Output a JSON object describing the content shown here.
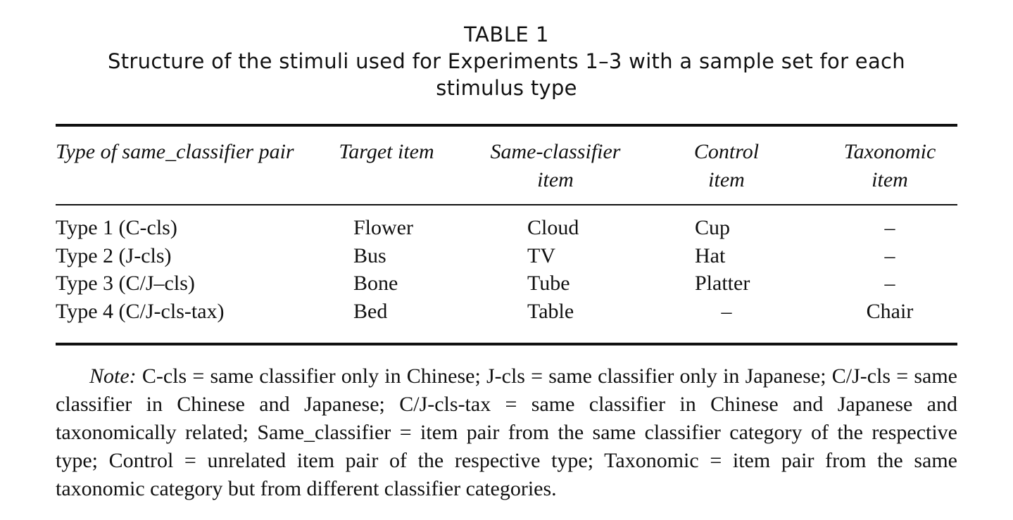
{
  "table": {
    "label": "TABLE 1",
    "title": "Structure of the stimuli used for Experiments 1–3 with a sample set for each stimulus type",
    "headers": [
      "Type of same_classifier pair",
      "Target item",
      "Same-classifier item",
      "Control item",
      "Taxonomic item"
    ],
    "rows": [
      [
        "Type 1 (C-cls)",
        "Flower",
        "Cloud",
        "Cup",
        "–"
      ],
      [
        "Type 2 (J-cls)",
        "Bus",
        "TV",
        "Hat",
        "–"
      ],
      [
        "Type 3 (C/J–cls)",
        "Bone",
        "Tube",
        "Platter",
        "–"
      ],
      [
        "Type 4 (C/J-cls-tax)",
        "Bed",
        "Table",
        "–",
        "Chair"
      ]
    ],
    "note_label": "Note:",
    "note_text": "C-cls = same classifier only in Chinese; J-cls = same classifier only in Japanese; C/J-cls = same classifier in Chinese and Japanese; C/J-cls-tax = same classifier in Chinese and Japanese and taxonomically related; Same_classifier = item pair from the same classifier category of the respective type; Control = unrelated item pair of the respective type; Taxonomic = item pair from the same taxonomic category but from different classifier categories."
  }
}
